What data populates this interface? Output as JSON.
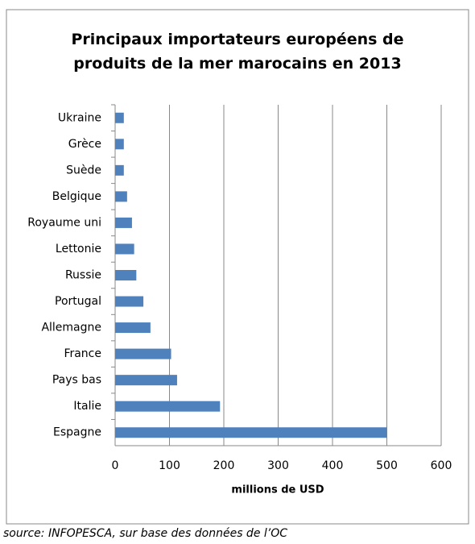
{
  "chart_data": {
    "type": "hbar",
    "title": "Principaux importateurs européens de produits de la mer marocains en 2013",
    "x_label": "millions de USD",
    "categories": [
      "Ukraine",
      "Grèce",
      "Suède",
      "Belgique",
      "Royaume uni",
      "Lettonie",
      "Russie",
      "Portugal",
      "Allemagne",
      "France",
      "Pays bas",
      "Italie",
      "Espagne"
    ],
    "values": [
      16,
      16,
      16,
      22,
      31,
      35,
      39,
      52,
      65,
      103,
      114,
      193,
      500
    ],
    "color": "#4f81bd",
    "xlim": [
      0,
      600
    ],
    "xticks": [
      0,
      100,
      200,
      300,
      400,
      500,
      600
    ],
    "grid": true
  },
  "source": "source: INFOPESCA, sur base des données de l’OC"
}
